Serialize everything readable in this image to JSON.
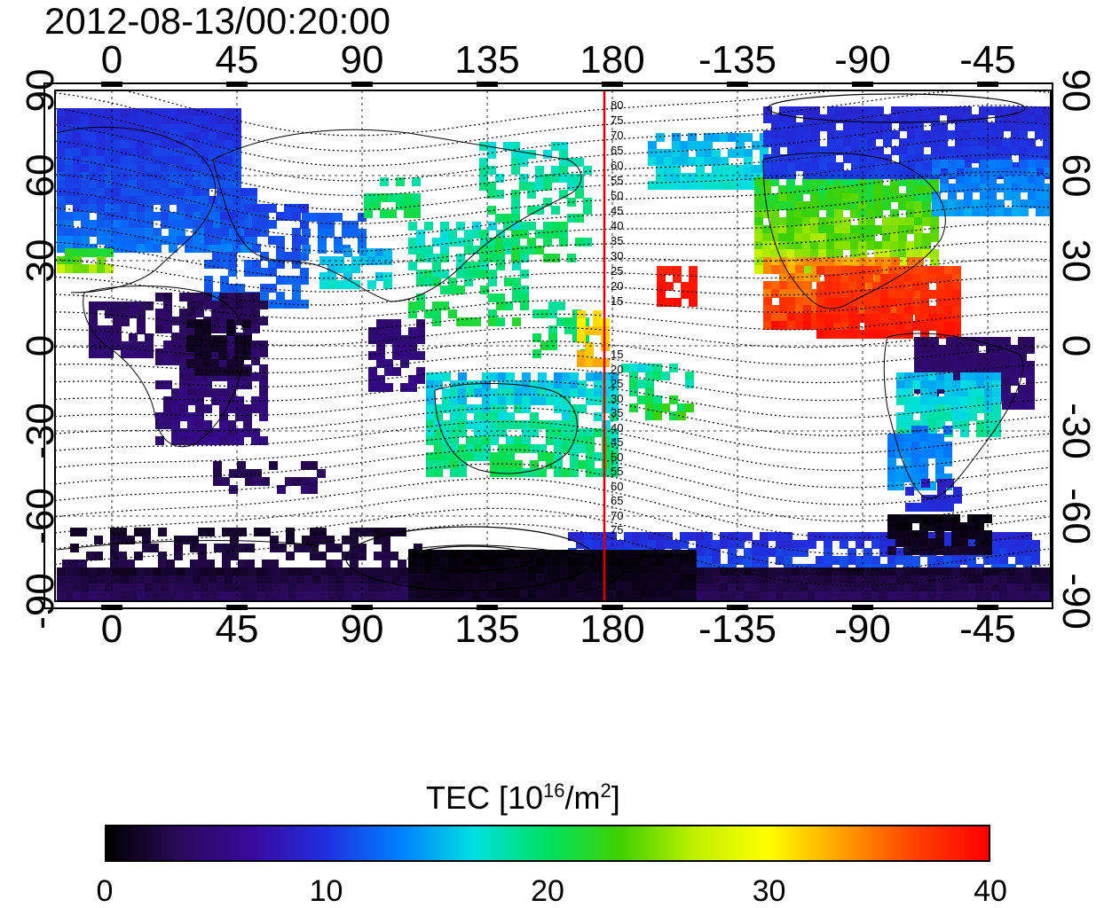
{
  "title": "2012-08-13/00:20:00",
  "axes": {
    "top_ticks": [
      "0",
      "45",
      "90",
      "135",
      "180",
      "-135",
      "-90",
      "-45"
    ],
    "bottom_ticks": [
      "0",
      "45",
      "90",
      "135",
      "180",
      "-135",
      "-90",
      "-45"
    ],
    "left_ticks": [
      "90",
      "60",
      "30",
      "0",
      "-30",
      "-60",
      "-90"
    ],
    "right_ticks": [
      "90",
      "60",
      "30",
      "0",
      "-30",
      "-60",
      "-90"
    ]
  },
  "contour_labels_north": [
    "80",
    "75",
    "70",
    "65",
    "60",
    "55",
    "50",
    "45",
    "40",
    "35",
    "30",
    "25",
    "20",
    "15"
  ],
  "contour_labels_south": [
    "15",
    "20",
    "25",
    "30",
    "35",
    "40",
    "45",
    "50",
    "55",
    "60",
    "65",
    "70",
    "75"
  ],
  "colorbar": {
    "label_prefix": "TEC  [10",
    "label_sup1": "16",
    "label_mid": "/m",
    "label_sup2": "2",
    "label_suffix": "]",
    "ticks": [
      "0",
      "10",
      "20",
      "30",
      "40"
    ],
    "range": [
      0,
      40
    ],
    "colors": [
      "#000000",
      "#2a0a5a",
      "#3a0aa0",
      "#2030e0",
      "#0080ff",
      "#00e0e0",
      "#00e060",
      "#40d000",
      "#c0f000",
      "#ffff00",
      "#ffa000",
      "#ff4000",
      "#ff0000"
    ]
  },
  "map": {
    "lon_range_shift": "0 to 360 displayed as 0..180,-180..-45",
    "marker_line_color": "#e00000",
    "marker_longitude": 175
  }
}
